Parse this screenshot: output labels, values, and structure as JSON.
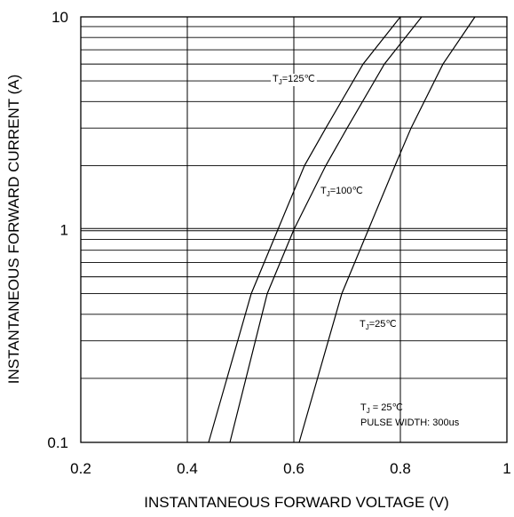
{
  "chart_data": {
    "type": "line",
    "xlabel": "INSTANTANEOUS FORWARD VOLTAGE (V)",
    "ylabel": "INSTANTANEOUS FORWARD CURRENT (A)",
    "xlim": [
      0.2,
      1.0
    ],
    "ylim": [
      0.1,
      10
    ],
    "yscale": "log",
    "grid": true,
    "x_ticks": [
      "0.2",
      "0.4",
      "0.6",
      "0.8",
      "1"
    ],
    "y_ticks": [
      "0.1",
      "1",
      "10"
    ],
    "series": [
      {
        "name": "TJ=125℃",
        "label_main": "T",
        "label_sub": "J",
        "label_rest": "=125℃",
        "points": [
          [
            0.44,
            0.1
          ],
          [
            0.52,
            0.5
          ],
          [
            0.57,
            1.0
          ],
          [
            0.62,
            2.0
          ],
          [
            0.66,
            3.0
          ],
          [
            0.73,
            6.0
          ],
          [
            0.8,
            10.0
          ]
        ]
      },
      {
        "name": "TJ=100℃",
        "label_main": "T",
        "label_sub": "J",
        "label_rest": "=100℃",
        "points": [
          [
            0.48,
            0.1
          ],
          [
            0.55,
            0.5
          ],
          [
            0.6,
            1.0
          ],
          [
            0.66,
            2.0
          ],
          [
            0.7,
            3.0
          ],
          [
            0.77,
            6.0
          ],
          [
            0.84,
            10.0
          ]
        ]
      },
      {
        "name": "TJ=25℃",
        "label_main": "T",
        "label_sub": "J",
        "label_rest": "=25℃",
        "points": [
          [
            0.61,
            0.1
          ],
          [
            0.69,
            0.5
          ],
          [
            0.74,
            1.0
          ],
          [
            0.79,
            2.0
          ],
          [
            0.82,
            3.0
          ],
          [
            0.88,
            6.0
          ],
          [
            0.94,
            10.0
          ]
        ]
      }
    ],
    "annotation": {
      "line1_main": "T",
      "line1_sub": "J",
      "line1_rest": " = 25℃",
      "line2": "PULSE WIDTH: 300us"
    }
  }
}
